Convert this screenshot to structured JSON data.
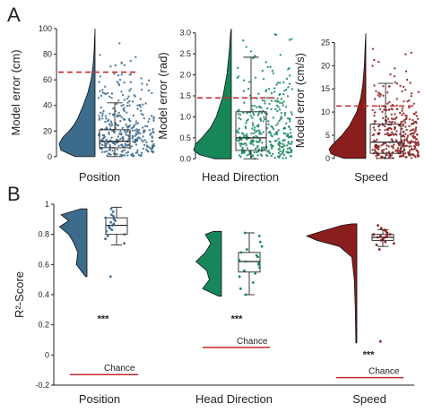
{
  "panel_a_label": "A",
  "panel_b_label": "B",
  "chart_data": [
    {
      "type": "raincloud",
      "panel": "A",
      "category": "Position",
      "ylabel": "Model error (cm)",
      "ylim": [
        -5,
        100
      ],
      "yticks": [
        0,
        20,
        40,
        60,
        80,
        100
      ],
      "threshold": 66,
      "color": "#3d6b8c",
      "box": {
        "min": 0,
        "q1": 7,
        "median": 12,
        "q3": 21,
        "max": 42
      },
      "density": [
        [
          0,
          0.55
        ],
        [
          5,
          0.95
        ],
        [
          10,
          1.0
        ],
        [
          15,
          0.9
        ],
        [
          20,
          0.72
        ],
        [
          25,
          0.58
        ],
        [
          30,
          0.48
        ],
        [
          40,
          0.33
        ],
        [
          50,
          0.2
        ],
        [
          60,
          0.11
        ],
        [
          70,
          0.06
        ],
        [
          80,
          0.03
        ],
        [
          90,
          0.015
        ],
        [
          100,
          0
        ]
      ],
      "point_seed": 3,
      "point_count": 340
    },
    {
      "type": "raincloud",
      "panel": "A",
      "category": "Head Direction",
      "ylabel": "Model error (rad)",
      "ylim": [
        -0.1,
        3.1
      ],
      "yticks": [
        0.0,
        0.5,
        1.0,
        1.5,
        2.0,
        2.5,
        3.0
      ],
      "threshold": 1.45,
      "color": "#17875a",
      "box": {
        "min": 0,
        "q1": 0.2,
        "median": 0.5,
        "q3": 1.12,
        "max": 2.42
      },
      "density": [
        [
          0,
          0.45
        ],
        [
          0.1,
          0.85
        ],
        [
          0.2,
          1.0
        ],
        [
          0.35,
          0.95
        ],
        [
          0.5,
          0.78
        ],
        [
          0.75,
          0.55
        ],
        [
          1.0,
          0.4
        ],
        [
          1.5,
          0.22
        ],
        [
          2.0,
          0.12
        ],
        [
          2.5,
          0.06
        ],
        [
          3.0,
          0.02
        ],
        [
          3.1,
          0
        ]
      ],
      "point_seed": 7,
      "point_count": 340
    },
    {
      "type": "raincloud",
      "panel": "A",
      "category": "Speed",
      "ylabel": "Model error (cm/s)",
      "ylim": [
        -1,
        28
      ],
      "yticks": [
        0,
        5,
        10,
        15,
        20,
        25
      ],
      "threshold": 11.3,
      "color": "#8a1d1d",
      "box": {
        "min": 0,
        "q1": 1.1,
        "median": 3.5,
        "q3": 7.4,
        "max": 16.2
      },
      "density": [
        [
          0,
          0.6
        ],
        [
          1,
          0.95
        ],
        [
          2,
          1.0
        ],
        [
          3,
          0.9
        ],
        [
          5,
          0.65
        ],
        [
          7,
          0.45
        ],
        [
          10,
          0.25
        ],
        [
          13,
          0.14
        ],
        [
          16,
          0.08
        ],
        [
          20,
          0.04
        ],
        [
          24,
          0.02
        ],
        [
          27,
          0
        ]
      ],
      "point_seed": 11,
      "point_count": 340
    },
    {
      "type": "raincloud",
      "panel": "B",
      "ylabel": "R²-Score",
      "ylim": [
        -0.2,
        1.0
      ],
      "yticks": [
        -0.2,
        0,
        0.2,
        0.4,
        0.6,
        0.8,
        1
      ],
      "groups": [
        {
          "category": "Position",
          "color": "#3d6b8c",
          "chance": -0.13,
          "chance_label": "Chance",
          "significance": "***",
          "box": {
            "min": 0.73,
            "q1": 0.8,
            "median": 0.86,
            "q3": 0.91,
            "max": 0.98
          },
          "density_range": [
            0.52,
            0.97
          ],
          "density": [
            [
              0.52,
              0.05
            ],
            [
              0.6,
              0.35
            ],
            [
              0.68,
              0.3
            ],
            [
              0.75,
              0.45
            ],
            [
              0.8,
              0.6
            ],
            [
              0.85,
              0.9
            ],
            [
              0.89,
              0.6
            ],
            [
              0.93,
              0.85
            ],
            [
              0.97,
              0.2
            ]
          ],
          "points": [
            0.97,
            0.95,
            0.93,
            0.92,
            0.91,
            0.9,
            0.89,
            0.88,
            0.87,
            0.86,
            0.85,
            0.84,
            0.83,
            0.82,
            0.8,
            0.79,
            0.77,
            0.74,
            0.52
          ]
        },
        {
          "category": "Head Direction",
          "color": "#17875a",
          "chance": 0.05,
          "chance_label": "Chance",
          "significance": "***",
          "box": {
            "min": 0.4,
            "q1": 0.55,
            "median": 0.62,
            "q3": 0.68,
            "max": 0.81
          },
          "density_range": [
            0.39,
            0.82
          ],
          "density": [
            [
              0.39,
              0.1
            ],
            [
              0.44,
              0.7
            ],
            [
              0.5,
              0.45
            ],
            [
              0.56,
              0.55
            ],
            [
              0.62,
              0.95
            ],
            [
              0.68,
              0.6
            ],
            [
              0.74,
              0.4
            ],
            [
              0.8,
              0.6
            ],
            [
              0.82,
              0.3
            ]
          ],
          "points": [
            0.81,
            0.79,
            0.75,
            0.72,
            0.7,
            0.68,
            0.66,
            0.65,
            0.63,
            0.62,
            0.61,
            0.6,
            0.58,
            0.56,
            0.54,
            0.52,
            0.48,
            0.44,
            0.4
          ]
        },
        {
          "category": "Speed",
          "color": "#8a1d1d",
          "chance": -0.15,
          "chance_label": "Chance",
          "significance": "***",
          "box": {
            "min": 0.72,
            "q1": 0.76,
            "median": 0.78,
            "q3": 0.8,
            "max": 0.83
          },
          "density_range": [
            0.08,
            0.87
          ],
          "density": [
            [
              0.08,
              0.02
            ],
            [
              0.3,
              0.03
            ],
            [
              0.5,
              0.05
            ],
            [
              0.65,
              0.1
            ],
            [
              0.72,
              0.35
            ],
            [
              0.76,
              0.8
            ],
            [
              0.79,
              1.0
            ],
            [
              0.82,
              0.7
            ],
            [
              0.86,
              0.3
            ],
            [
              0.87,
              0.1
            ]
          ],
          "points": [
            0.86,
            0.84,
            0.83,
            0.82,
            0.81,
            0.8,
            0.8,
            0.79,
            0.79,
            0.78,
            0.78,
            0.77,
            0.77,
            0.76,
            0.75,
            0.74,
            0.73,
            0.7,
            0.09
          ]
        }
      ]
    }
  ]
}
